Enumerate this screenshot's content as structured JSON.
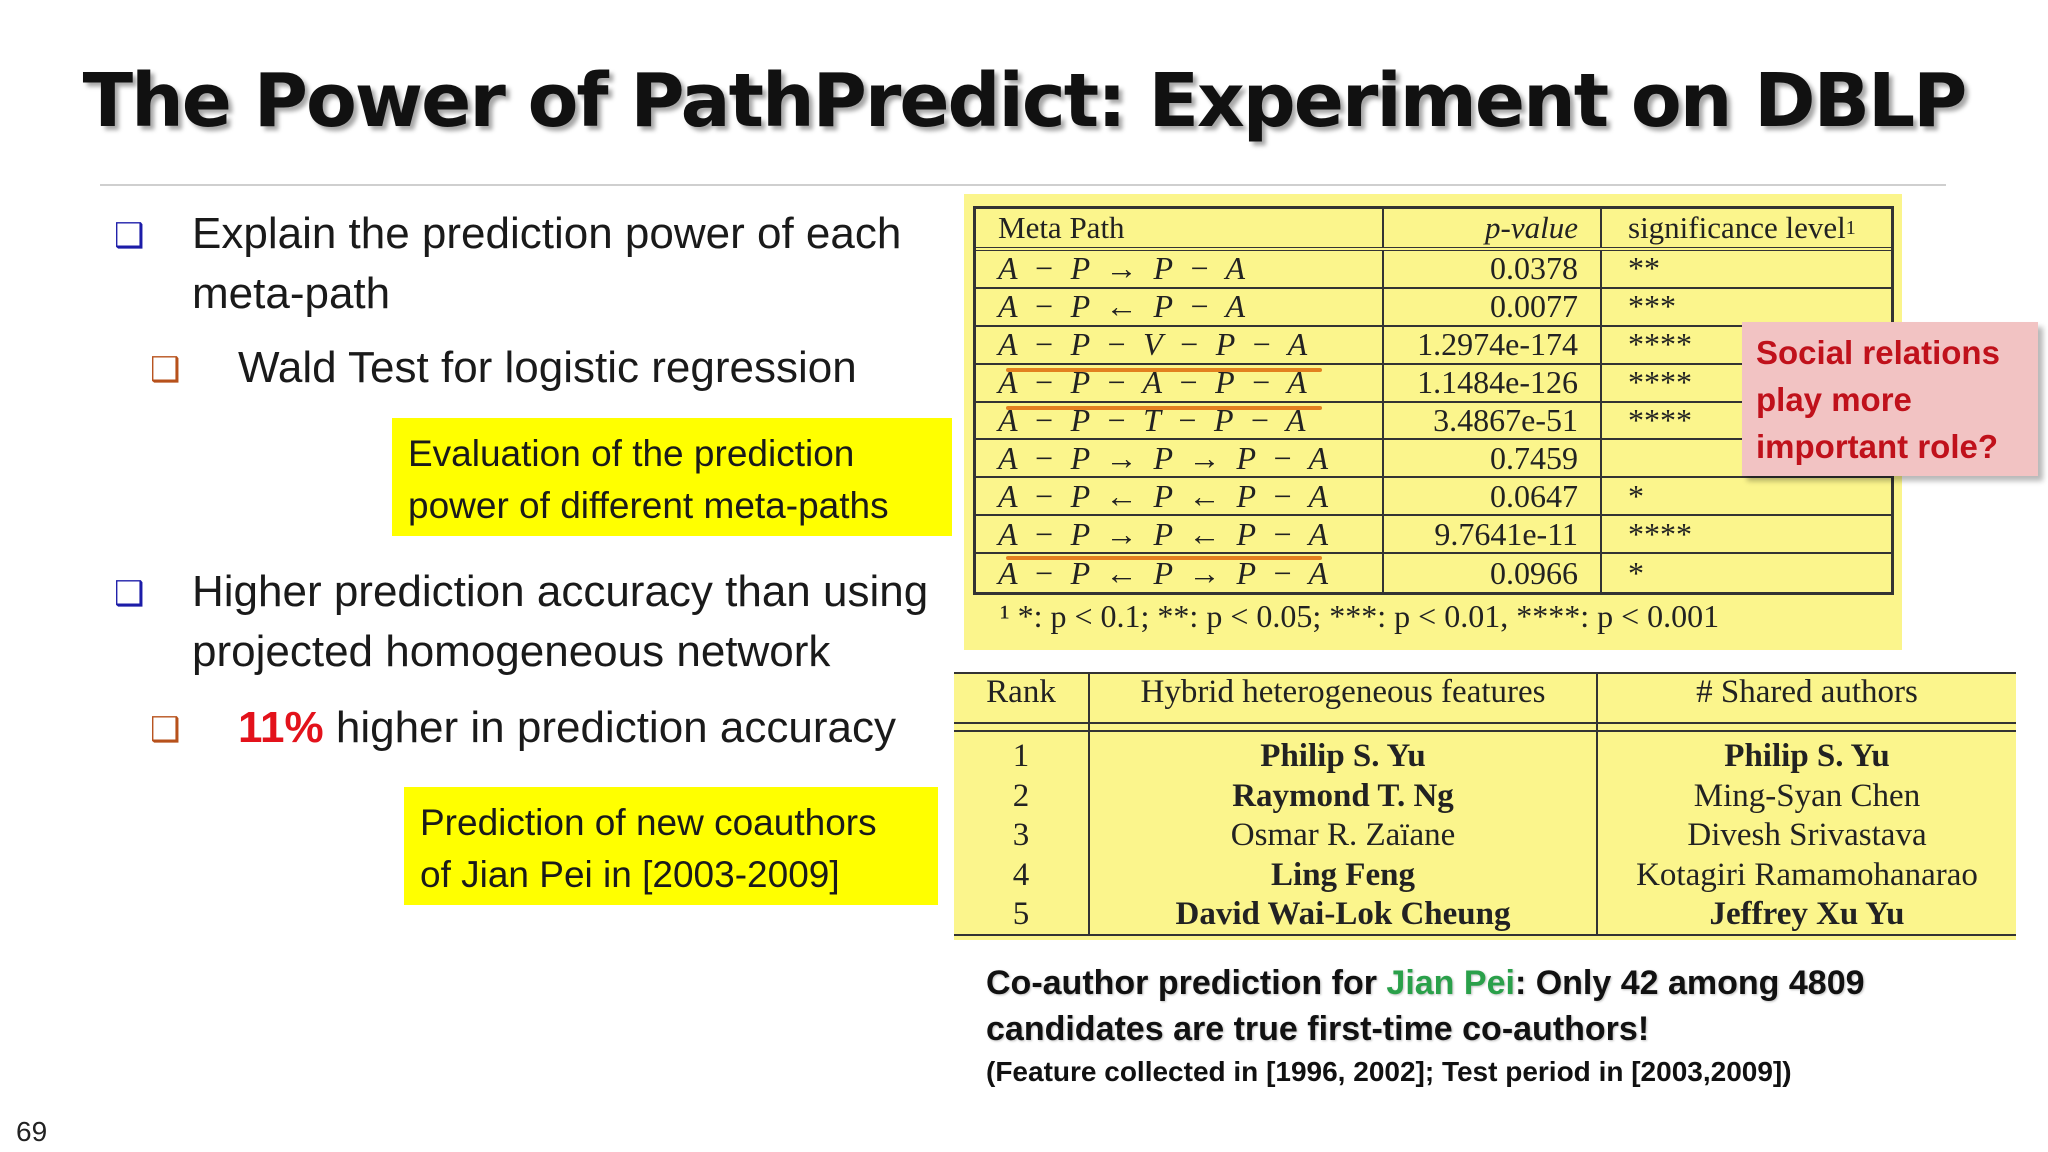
{
  "slide": {
    "title": "The Power of PathPredict: Experiment on DBLP",
    "page_number": "69"
  },
  "bullets": {
    "b1_mark": "❑",
    "b1_line1": "Explain the prediction power of each",
    "b1_line2": "meta-path",
    "b1_sub_mark": "❑",
    "b1_sub": "Wald Test for logistic regression",
    "b2_mark": "❑",
    "b2_line1": "Higher prediction accuracy than using",
    "b2_line2": "projected homogeneous network",
    "b2_sub_mark": "❑",
    "b2_sub_highlight": "11%",
    "b2_sub_rest": " higher in prediction accuracy"
  },
  "boxes": {
    "eval_line1": "Evaluation of the prediction",
    "eval_line2": "power of different meta-paths",
    "pred_line1": "Prediction of new coauthors",
    "pred_line2": "of Jian Pei in [2003-2009]"
  },
  "meta_table": {
    "headers": [
      "Meta Path",
      "p-value",
      "significance level"
    ],
    "header_footmark": "1",
    "rows": [
      {
        "path": "A − P → P − A",
        "p": "0.0378",
        "sig": "**"
      },
      {
        "path": "A − P ← P − A",
        "p": "0.0077",
        "sig": "***"
      },
      {
        "path": "A − P − V − P − A",
        "p": "1.2974e-174",
        "sig": "****"
      },
      {
        "path": "A − P − A − P − A",
        "p": "1.1484e-126",
        "sig": "****"
      },
      {
        "path": "A − P − T − P − A",
        "p": "3.4867e-51",
        "sig": "****"
      },
      {
        "path": "A − P → P → P − A",
        "p": "0.7459",
        "sig": ""
      },
      {
        "path": "A − P ← P ← P − A",
        "p": "0.0647",
        "sig": "*"
      },
      {
        "path": "A − P → P ← P − A",
        "p": "9.7641e-11",
        "sig": "****"
      },
      {
        "path": "A − P ← P → P − A",
        "p": "0.0966",
        "sig": "*"
      }
    ],
    "footnote": "¹ *: p < 0.1; **: p < 0.05; ***: p < 0.01, ****: p < 0.001"
  },
  "rank_table": {
    "headers": [
      "Rank",
      "Hybrid heterogeneous features",
      "# Shared authors"
    ],
    "rows": [
      {
        "rank": "1",
        "hybrid": "Philip S. Yu",
        "shared": "Philip S. Yu"
      },
      {
        "rank": "2",
        "hybrid": "Raymond T. Ng",
        "shared": "Ming-Syan Chen"
      },
      {
        "rank": "3",
        "hybrid": "Osmar R. Zaïane",
        "shared": "Divesh Srivastava"
      },
      {
        "rank": "4",
        "hybrid": "Ling Feng",
        "shared": "Kotagiri Ramamohanarao"
      },
      {
        "rank": "5",
        "hybrid": "David Wai-Lok Cheung",
        "shared": "Jeffrey Xu Yu"
      }
    ]
  },
  "callout": {
    "line1": "Social relations",
    "line2": "play more",
    "line3": "important role?"
  },
  "note": {
    "pre": "Co-author prediction for ",
    "name": "Jian Pei",
    "post": ": Only 42 among 4809",
    "line2": "candidates are true first-time co-authors!",
    "line3": "(Feature collected in [1996, 2002]; Test period in [2003,2009])"
  },
  "colors": {
    "bullet_blue": "#1c1ca8",
    "bullet_orange": "#b7511b",
    "highlight_yellow": "#ffff00",
    "accent_red": "#e3121b",
    "name_green": "#2aa04a",
    "table_bg": "#fbf58c",
    "callout_bg": "#f2c3c3",
    "underline_orange": "#e2801f"
  }
}
